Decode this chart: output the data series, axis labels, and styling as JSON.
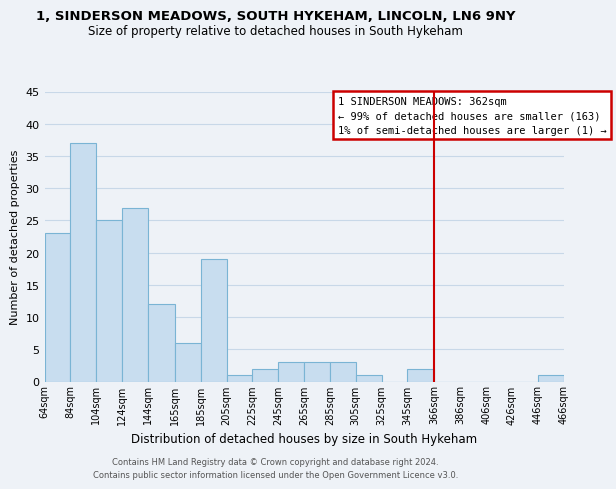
{
  "title": "1, SINDERSON MEADOWS, SOUTH HYKEHAM, LINCOLN, LN6 9NY",
  "subtitle": "Size of property relative to detached houses in South Hykeham",
  "xlabel": "Distribution of detached houses by size in South Hykeham",
  "ylabel": "Number of detached properties",
  "bar_edges": [
    64,
    84,
    104,
    124,
    144,
    165,
    185,
    205,
    225,
    245,
    265,
    285,
    305,
    325,
    345,
    366,
    386,
    406,
    426,
    446,
    466
  ],
  "bar_heights": [
    23,
    37,
    25,
    27,
    12,
    6,
    19,
    1,
    2,
    3,
    3,
    3,
    1,
    0,
    2,
    0,
    0,
    0,
    0,
    1
  ],
  "bar_color": "#c8ddef",
  "bar_edge_color": "#7ab4d4",
  "vline_x": 366,
  "vline_color": "#cc0000",
  "ylim": [
    0,
    45
  ],
  "yticks": [
    0,
    5,
    10,
    15,
    20,
    25,
    30,
    35,
    40,
    45
  ],
  "annotation_title": "1 SINDERSON MEADOWS: 362sqm",
  "annotation_line1": "← 99% of detached houses are smaller (163)",
  "annotation_line2": "1% of semi-detached houses are larger (1) →",
  "annotation_box_color": "#ffffff",
  "annotation_box_edge_color": "#cc0000",
  "footer_line1": "Contains HM Land Registry data © Crown copyright and database right 2024.",
  "footer_line2": "Contains public sector information licensed under the Open Government Licence v3.0.",
  "tick_labels": [
    "64sqm",
    "84sqm",
    "104sqm",
    "124sqm",
    "144sqm",
    "165sqm",
    "185sqm",
    "205sqm",
    "225sqm",
    "245sqm",
    "265sqm",
    "285sqm",
    "305sqm",
    "325sqm",
    "345sqm",
    "366sqm",
    "386sqm",
    "406sqm",
    "426sqm",
    "446sqm",
    "466sqm"
  ],
  "bg_color": "#eef2f7",
  "grid_color": "#c8d8e8",
  "title_fontsize": 9.5,
  "subtitle_fontsize": 8.5,
  "ylabel_fontsize": 8,
  "xlabel_fontsize": 8.5,
  "tick_fontsize": 7,
  "ytick_fontsize": 8,
  "ann_fontsize": 7.5,
  "footer_fontsize": 6.0
}
